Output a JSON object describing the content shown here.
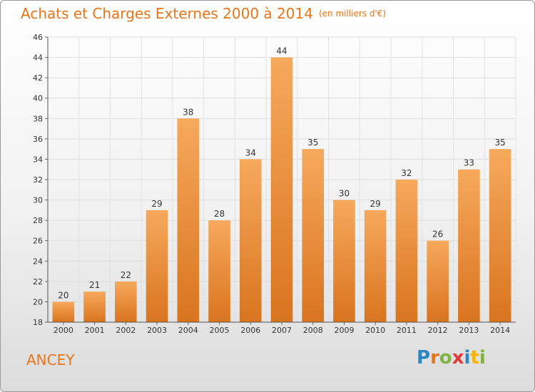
{
  "title": "Achats et Charges Externes 2000 à 2014",
  "unit_note": "(en milliers d'€)",
  "place_name": "ANCEY",
  "logo": {
    "letters": [
      "P",
      "r",
      "o",
      "x",
      "i",
      "t",
      "i"
    ],
    "colors": [
      "#2e86c1",
      "#e8751a",
      "#7cb342",
      "#e53935",
      "#2e86c1",
      "#f4b400",
      "#7cb342"
    ]
  },
  "colors": {
    "bar_light": "#f6a95c",
    "bar_dark": "#d9741e",
    "accent": "#e8751a"
  },
  "chart_data": {
    "type": "bar",
    "title": "Achats et Charges Externes 2000 à 2014",
    "subtitle": "(en milliers d'€)",
    "xlabel": "",
    "ylabel": "",
    "categories": [
      "2000",
      "2001",
      "2002",
      "2003",
      "2004",
      "2005",
      "2006",
      "2007",
      "2008",
      "2009",
      "2010",
      "2011",
      "2012",
      "2013",
      "2014"
    ],
    "values": [
      20,
      21,
      22,
      29,
      38,
      28,
      34,
      44,
      35,
      30,
      29,
      32,
      26,
      33,
      35
    ],
    "ylim": [
      18,
      46
    ],
    "yticks": [
      18,
      20,
      22,
      24,
      26,
      28,
      30,
      32,
      34,
      36,
      38,
      40,
      42,
      44,
      46
    ],
    "grid": true
  }
}
